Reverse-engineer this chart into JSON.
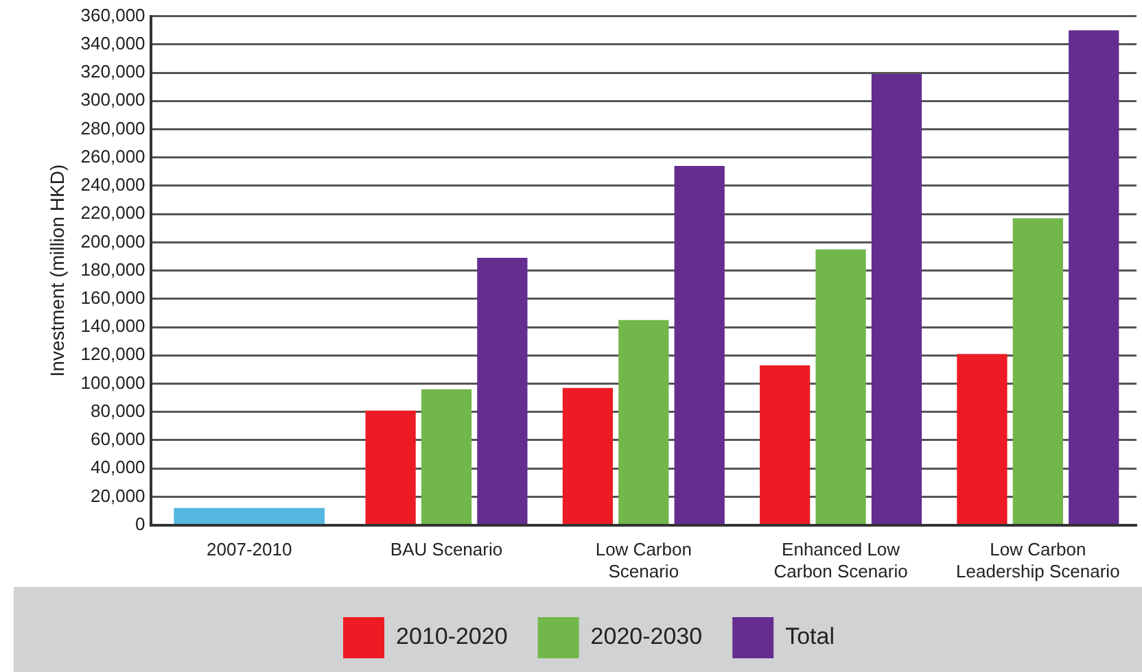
{
  "chart_data": {
    "type": "bar",
    "ylabel": "Investment (million HKD)",
    "categories": [
      "2007-2010",
      "BAU Scenario",
      "Low Carbon Scenario",
      "Enhanced Low Carbon Scenario",
      "Low Carbon Leadership Scenario"
    ],
    "series": [
      {
        "color": "#56b7e1",
        "values": [
          12000,
          null,
          null,
          null,
          null
        ]
      },
      {
        "name": "2010-2020",
        "color": "#ed1c24",
        "values": [
          null,
          81000,
          97000,
          113000,
          121000
        ]
      },
      {
        "name": "2020-2030",
        "color": "#72b74a",
        "values": [
          null,
          96000,
          145000,
          195000,
          217000
        ]
      },
      {
        "name": "Total",
        "color": "#652d90",
        "values": [
          null,
          189000,
          254000,
          319000,
          350000
        ]
      }
    ],
    "ylim": [
      0,
      360000
    ],
    "yticks": [
      {
        "value": 0,
        "label": "0"
      },
      {
        "value": 20000,
        "label": "20,000"
      },
      {
        "value": 40000,
        "label": "40,000"
      },
      {
        "value": 60000,
        "label": "60,000"
      },
      {
        "value": 80000,
        "label": "80,000"
      },
      {
        "value": 100000,
        "label": "100,000"
      },
      {
        "value": 120000,
        "label": "120,000"
      },
      {
        "value": 140000,
        "label": "140,000"
      },
      {
        "value": 160000,
        "label": "160,000"
      },
      {
        "value": 180000,
        "label": "180,000"
      },
      {
        "value": 200000,
        "label": "200,000"
      },
      {
        "value": 220000,
        "label": "220,000"
      },
      {
        "value": 240000,
        "label": "240,000"
      },
      {
        "value": 260000,
        "label": "260,000"
      },
      {
        "value": 280000,
        "label": "280,000"
      },
      {
        "value": 300000,
        "label": "300,000"
      },
      {
        "value": 320000,
        "label": "320,000"
      },
      {
        "value": 340000,
        "label": "340,000"
      },
      {
        "value": 360000,
        "label": "360,000"
      }
    ],
    "grid": "y",
    "legend": "bottom"
  }
}
